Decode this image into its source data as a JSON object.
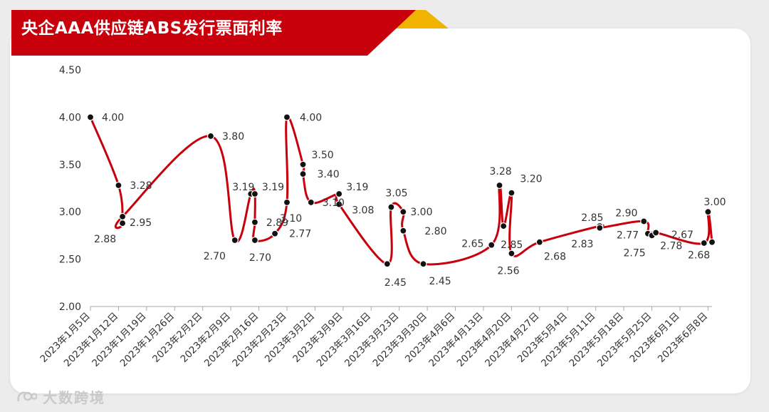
{
  "title": "央企AAA供应链ABS发行票面利率",
  "watermark": "大数跨境",
  "colors": {
    "line": "#c8000c",
    "banner": "#c8000c",
    "banner_accent": "#f0b400",
    "marker": "#111111"
  },
  "chart_data": {
    "type": "line",
    "title": "央企AAA供应链ABS发行票面利率",
    "xlabel": "",
    "ylabel": "",
    "ylim": [
      2.0,
      4.5
    ],
    "yticks": [
      "2.00",
      "2.50",
      "3.00",
      "3.50",
      "4.00",
      "4.50"
    ],
    "grid": false,
    "smooth": true,
    "x_tick_labels": [
      "2023年1月5日",
      "2023年1月12日",
      "2023年1月19日",
      "2023年1月26日",
      "2023年2月2日",
      "2023年2月9日",
      "2023年2月16日",
      "2023年2月23日",
      "2023年3月2日",
      "2023年3月9日",
      "2023年3月16日",
      "2023年3月23日",
      "2023年3月30日",
      "2023年4月6日",
      "2023年4月13日",
      "2023年4月20日",
      "2023年4月27日",
      "2023年5月4日",
      "2023年5月11日",
      "2023年5月18日",
      "2023年5月25日",
      "2023年6月1日",
      "2023年6月8日"
    ],
    "x_range": [
      "2023-01-05",
      "2023-06-09"
    ],
    "points": [
      {
        "x": "2023-01-05",
        "y": 4.0,
        "label": "4.00"
      },
      {
        "x": "2023-01-12",
        "y": 3.28,
        "label": "3.28"
      },
      {
        "x": "2023-01-13",
        "y": 2.88,
        "label": "2.88"
      },
      {
        "x": "2023-01-13",
        "y": 2.95,
        "label": "2.95"
      },
      {
        "x": "2023-02-04",
        "y": 3.8,
        "label": "3.80"
      },
      {
        "x": "2023-02-10",
        "y": 2.7,
        "label": "2.70"
      },
      {
        "x": "2023-02-14",
        "y": 3.19,
        "label": "3.19"
      },
      {
        "x": "2023-02-15",
        "y": 3.19,
        "label": "3.19"
      },
      {
        "x": "2023-02-15",
        "y": 2.89,
        "label": "2.89"
      },
      {
        "x": "2023-02-15",
        "y": 2.7,
        "label": "2.70"
      },
      {
        "x": "2023-02-20",
        "y": 2.77,
        "label": "2.77"
      },
      {
        "x": "2023-02-23",
        "y": 3.1,
        "label": "3.10"
      },
      {
        "x": "2023-02-23",
        "y": 4.0,
        "label": "4.00"
      },
      {
        "x": "2023-02-27",
        "y": 3.5,
        "label": "3.50"
      },
      {
        "x": "2023-02-27",
        "y": 3.4,
        "label": "3.40"
      },
      {
        "x": "2023-03-01",
        "y": 3.1,
        "label": "3.10"
      },
      {
        "x": "2023-03-08",
        "y": 3.19,
        "label": "3.19"
      },
      {
        "x": "2023-03-08",
        "y": 3.08,
        "label": "3.08"
      },
      {
        "x": "2023-03-20",
        "y": 2.45,
        "label": "2.45"
      },
      {
        "x": "2023-03-21",
        "y": 3.05,
        "label": "3.05"
      },
      {
        "x": "2023-03-24",
        "y": 3.0,
        "label": "3.00"
      },
      {
        "x": "2023-03-24",
        "y": 2.8,
        "label": "2.80"
      },
      {
        "x": "2023-03-29",
        "y": 2.45,
        "label": "2.45"
      },
      {
        "x": "2023-04-15",
        "y": 2.65,
        "label": "2.65"
      },
      {
        "x": "2023-04-17",
        "y": 3.28,
        "label": "3.28"
      },
      {
        "x": "2023-04-18",
        "y": 2.85,
        "label": "2.85"
      },
      {
        "x": "2023-04-20",
        "y": 3.2,
        "label": "3.20"
      },
      {
        "x": "2023-04-20",
        "y": 2.56,
        "label": "2.56"
      },
      {
        "x": "2023-04-27",
        "y": 2.68,
        "label": "2.68"
      },
      {
        "x": "2023-05-12",
        "y": 2.85,
        "label": "2.85"
      },
      {
        "x": "2023-05-12",
        "y": 2.83,
        "label": "2.83"
      },
      {
        "x": "2023-05-23",
        "y": 2.9,
        "label": "2.90"
      },
      {
        "x": "2023-05-24",
        "y": 2.77,
        "label": "2.77"
      },
      {
        "x": "2023-05-25",
        "y": 2.75,
        "label": "2.75"
      },
      {
        "x": "2023-05-26",
        "y": 2.78,
        "label": "2.78"
      },
      {
        "x": "2023-06-07",
        "y": 2.67,
        "label": "2.67"
      },
      {
        "x": "2023-06-08",
        "y": 3.0,
        "label": "3.00"
      },
      {
        "x": "2023-06-09",
        "y": 2.68,
        "label": "2.68"
      }
    ]
  }
}
